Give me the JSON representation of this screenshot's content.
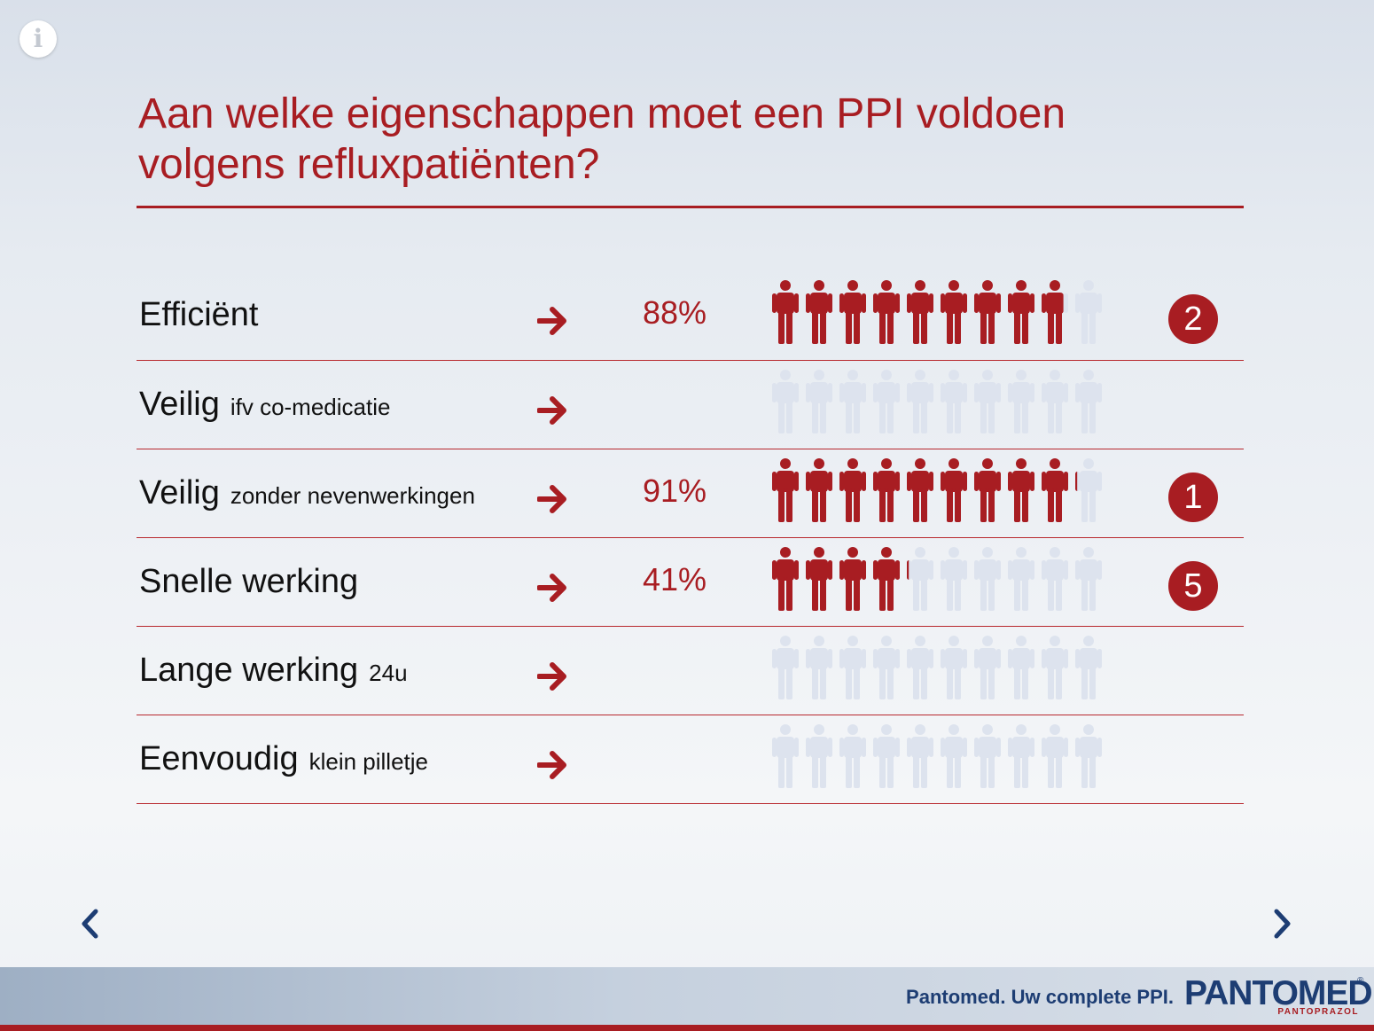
{
  "info_icon": "info-icon",
  "title": {
    "line1": "Aan welke eigenschappen moet een PPI voldoen",
    "line2": "volgens refluxpatiënten?"
  },
  "colors": {
    "accent_red": "#a81d22",
    "person_inactive": "#dde3ee",
    "brand_blue": "#1d3d73"
  },
  "rows": [
    {
      "label": "Efficiënt",
      "sub": "",
      "percent_text": "88%",
      "fraction": 0.88,
      "rank": "2"
    },
    {
      "label": "Veilig",
      "sub": "ifv co-medicatie",
      "percent_text": "",
      "fraction": 0,
      "rank": ""
    },
    {
      "label": "Veilig",
      "sub": "zonder nevenwerkingen",
      "percent_text": "91%",
      "fraction": 0.91,
      "rank": "1"
    },
    {
      "label": "Snelle werking",
      "sub": "",
      "percent_text": "41%",
      "fraction": 0.41,
      "rank": "5"
    },
    {
      "label": "Lange werking",
      "sub": "24u",
      "percent_text": "",
      "fraction": 0,
      "rank": ""
    },
    {
      "label": "Eenvoudig",
      "sub": "klein pilletje",
      "percent_text": "",
      "fraction": 0,
      "rank": ""
    }
  ],
  "people_per_row": 10,
  "nav": {
    "prev_icon": "chevron-left-icon",
    "next_icon": "chevron-right-icon"
  },
  "footer": {
    "tagline": "Pantomed. Uw complete PPI.",
    "brand": "PANTOMED",
    "brand_reg": "®",
    "brand_sub": "PANTOPRAZOL"
  }
}
